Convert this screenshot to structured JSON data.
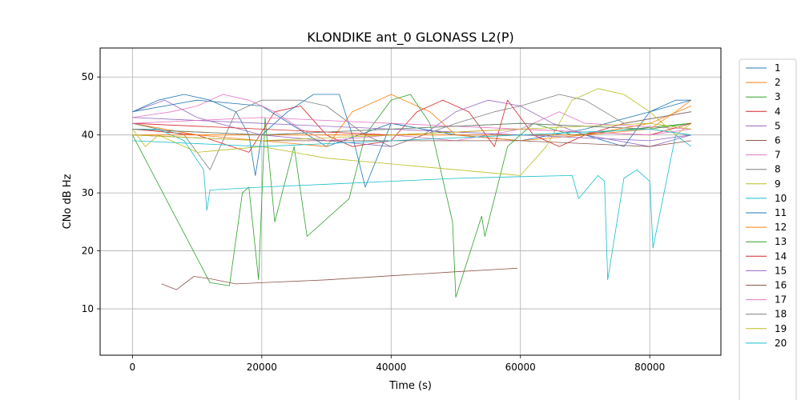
{
  "chart_data": {
    "type": "line",
    "title": "KLONDIKE ant_0 GLONASS L2(P)",
    "xlabel": "Time (s)",
    "ylabel": "CNo dB Hz",
    "xlim": [
      -5000,
      91000
    ],
    "ylim": [
      2,
      55
    ],
    "xticks": [
      0,
      20000,
      40000,
      60000,
      80000
    ],
    "xtick_labels": [
      "0",
      "20000",
      "40000",
      "60000",
      "80000"
    ],
    "yticks": [
      10,
      20,
      30,
      40,
      50
    ],
    "ytick_labels": [
      "10",
      "20",
      "30",
      "40",
      "50"
    ],
    "grid": true,
    "legend_placement": "right, outside plot",
    "series": [
      {
        "name": "1",
        "color": "#1f77b4",
        "x": [
          0,
          10000,
          20000,
          30000,
          40000,
          50000,
          60000,
          70000,
          80000,
          86400
        ],
        "y": [
          44,
          46,
          45,
          38,
          42,
          40,
          39,
          41,
          44,
          46
        ]
      },
      {
        "name": "2",
        "color": "#ff7f0e",
        "x": [
          0,
          10000,
          20000,
          30000,
          34000,
          40000,
          46000,
          50000,
          60000,
          70000,
          80000,
          86400
        ],
        "y": [
          42,
          40,
          39,
          38,
          44,
          47,
          44,
          40,
          39,
          40,
          42,
          45
        ]
      },
      {
        "name": "3",
        "color": "#2ca02c",
        "x": [
          0,
          12000,
          15000,
          17000,
          18000,
          19500,
          20500,
          22000,
          25000,
          27000,
          33500,
          36000,
          40000,
          43000,
          46000,
          49500,
          50000,
          54000,
          54500,
          58000,
          62000,
          68000,
          86400
        ],
        "y": [
          40,
          14.5,
          14,
          30,
          31,
          15,
          43,
          25,
          38,
          22.5,
          29,
          40,
          46,
          47,
          42,
          25,
          12,
          26,
          22.5,
          38,
          42,
          40,
          42
        ]
      },
      {
        "name": "4",
        "color": "#d62728",
        "x": [
          0,
          10000,
          18000,
          22000,
          26000,
          30000,
          34000,
          40000,
          44000,
          48000,
          52000,
          56000,
          58000,
          62000,
          66000,
          70000,
          76000,
          86400
        ],
        "y": [
          41,
          40,
          37,
          44,
          45,
          40,
          38,
          39,
          44,
          46,
          44,
          38,
          46,
          40,
          38,
          40,
          42,
          44
        ]
      },
      {
        "name": "5",
        "color": "#9467bd",
        "x": [
          0,
          5000,
          10000,
          20000,
          30000,
          40000,
          45000,
          50000,
          55000,
          60000,
          65000,
          70000,
          75000,
          80000,
          86400
        ],
        "y": [
          44,
          46,
          43,
          40,
          39,
          38,
          40,
          44,
          46,
          45,
          42,
          40,
          39,
          38,
          40
        ]
      },
      {
        "name": "6",
        "color": "#8c564b",
        "x": [
          4500,
          6800,
          9500,
          12000,
          16000,
          20000,
          30000,
          40000,
          50000,
          59500
        ],
        "y": [
          14.3,
          13.3,
          15.6,
          15.2,
          14.3,
          14.5,
          15,
          15.7,
          16.4,
          17
        ]
      },
      {
        "name": "7",
        "color": "#e377c2",
        "x": [
          0,
          6000,
          10000,
          14000,
          18000,
          22000,
          26000,
          30000,
          40000,
          50000,
          60000,
          66000,
          70000,
          86400
        ],
        "y": [
          43,
          44,
          45,
          47,
          46,
          44,
          41,
          39,
          40,
          39,
          41,
          44,
          42,
          41
        ]
      },
      {
        "name": "8",
        "color": "#7f7f7f",
        "x": [
          0,
          8000,
          12000,
          16000,
          20000,
          26000,
          30000,
          36000,
          40000,
          50000,
          56000,
          60000,
          66000,
          70000,
          76000,
          86400
        ],
        "y": [
          42,
          40,
          34,
          44,
          46,
          46,
          45,
          40,
          38,
          42,
          44,
          45,
          47,
          46,
          42,
          44
        ]
      },
      {
        "name": "9",
        "color": "#bcbd22",
        "x": [
          0,
          2000,
          4000,
          10000,
          20000,
          30000,
          40000,
          50000,
          60000,
          64000,
          68000,
          72000,
          76000,
          80000,
          84000,
          86400
        ],
        "y": [
          41,
          38,
          40,
          37,
          38,
          36,
          35,
          34,
          33,
          38,
          46,
          48,
          47,
          44,
          40,
          42
        ]
      },
      {
        "name": "10",
        "color": "#17becf",
        "x": [
          0,
          4000,
          8000,
          11000,
          11500,
          12000,
          20000,
          30000,
          40000,
          50000,
          60000,
          68000,
          69000,
          72000,
          73000,
          73500,
          76000,
          78000,
          80000,
          80500,
          84000,
          86400
        ],
        "y": [
          41,
          41,
          39,
          34,
          27,
          30.5,
          31,
          31.5,
          32,
          32.5,
          32.8,
          33,
          29,
          33,
          32,
          15,
          32.5,
          34,
          32,
          20.5,
          40,
          38
        ]
      },
      {
        "name": "11",
        "color": "#1f77b4",
        "x": [
          0,
          4000,
          8000,
          12000,
          16000,
          18000,
          19000,
          20000,
          24000,
          28000,
          32000,
          34000,
          36000,
          40000,
          50000,
          60000,
          70000,
          76000,
          80000,
          84000,
          86400
        ],
        "y": [
          44,
          46,
          47,
          46,
          44,
          40,
          33,
          40,
          44,
          47,
          47,
          40,
          31,
          42,
          40,
          40,
          40,
          38,
          44,
          46,
          46
        ]
      },
      {
        "name": "12",
        "color": "#ff7f0e",
        "x": [
          0,
          20000,
          40000,
          60000,
          70000,
          80000,
          84000,
          86400
        ],
        "y": [
          40,
          40,
          40,
          40,
          40,
          41,
          44,
          46
        ]
      },
      {
        "name": "13",
        "color": "#2ca02c",
        "x": [
          0,
          20000,
          40000,
          60000,
          80000,
          86400
        ],
        "y": [
          41,
          40,
          41,
          42,
          41,
          42
        ]
      },
      {
        "name": "14",
        "color": "#d62728",
        "x": [
          0,
          20000,
          40000,
          60000,
          80000,
          86400
        ],
        "y": [
          42,
          41,
          40,
          41,
          40,
          42
        ]
      },
      {
        "name": "15",
        "color": "#9467bd",
        "x": [
          0,
          20000,
          40000,
          60000,
          80000,
          86400
        ],
        "y": [
          43,
          42,
          41,
          40,
          39,
          40
        ]
      },
      {
        "name": "16",
        "color": "#8c564b",
        "x": [
          0,
          20000,
          40000,
          60000,
          80000,
          86400
        ],
        "y": [
          40,
          39,
          39,
          39,
          38,
          39
        ]
      },
      {
        "name": "17",
        "color": "#e377c2",
        "x": [
          0,
          20000,
          40000,
          60000,
          80000,
          86400
        ],
        "y": [
          42,
          43,
          42,
          41,
          40,
          41
        ]
      },
      {
        "name": "18",
        "color": "#7f7f7f",
        "x": [
          0,
          20000,
          40000,
          60000,
          80000,
          86400
        ],
        "y": [
          41,
          40,
          41,
          42,
          41,
          40
        ]
      },
      {
        "name": "19",
        "color": "#bcbd22",
        "x": [
          0,
          20000,
          40000,
          60000,
          80000,
          86400
        ],
        "y": [
          40,
          39,
          40,
          41,
          42,
          41
        ]
      },
      {
        "name": "20",
        "color": "#17becf",
        "x": [
          0,
          20000,
          40000,
          60000,
          80000,
          86400
        ],
        "y": [
          39,
          38,
          39,
          40,
          41,
          40
        ]
      }
    ]
  }
}
